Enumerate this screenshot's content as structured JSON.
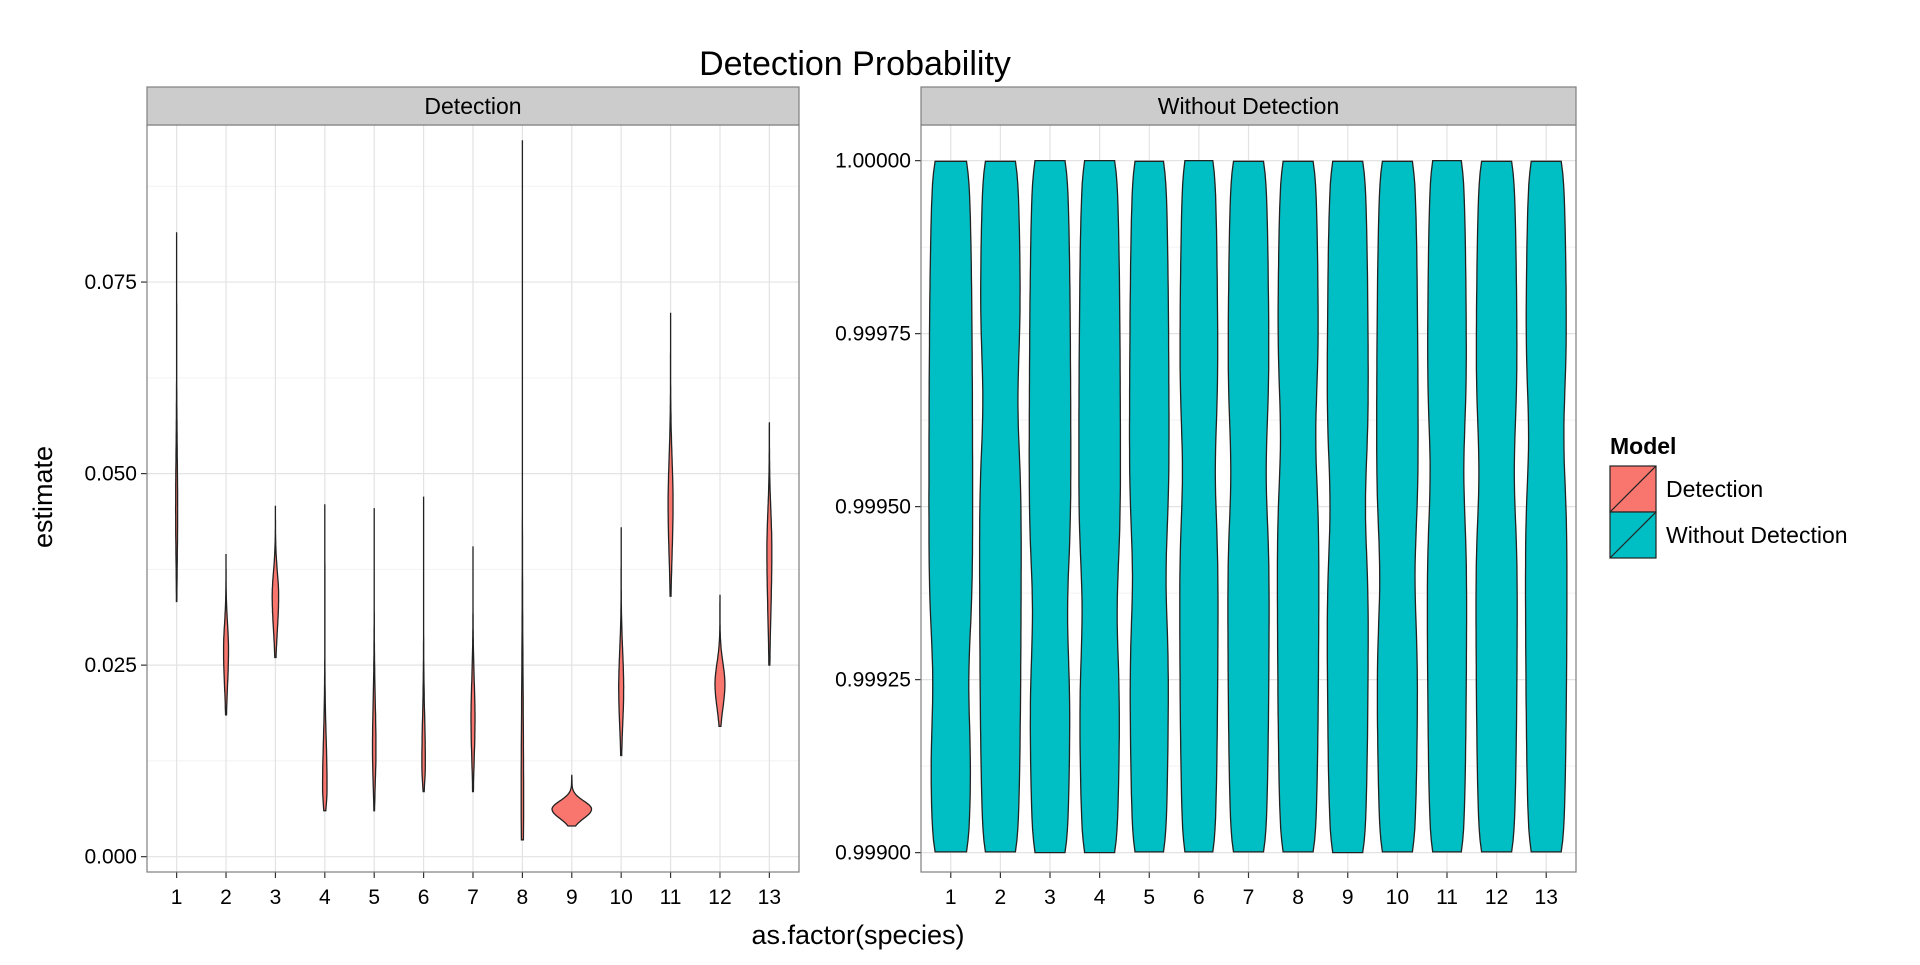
{
  "chart_data": {
    "type": "violin",
    "title": "Detection Probability",
    "xlabel": "as.factor(species)",
    "ylabel": "estimate",
    "categories": [
      "1",
      "2",
      "3",
      "4",
      "5",
      "6",
      "7",
      "8",
      "9",
      "10",
      "11",
      "12",
      "13"
    ],
    "grid": true,
    "legend": {
      "title": "Model",
      "placement": "right",
      "entries": [
        {
          "name": "Detection",
          "color": "#F8766D"
        },
        {
          "name": "Without Detection",
          "color": "#00BFC4"
        }
      ]
    },
    "panels": [
      {
        "strip": "Detection",
        "fill": "#F8766D",
        "ylim": [
          -0.002,
          0.0955
        ],
        "yticks": [
          0.0,
          0.025,
          0.05,
          0.075
        ],
        "ytick_labels": [
          "0.000",
          "0.025",
          "0.050",
          "0.075"
        ],
        "violins": [
          {
            "species": "1",
            "min": 0.0333,
            "max": 0.0815,
            "mode": 0.045,
            "maxWidth": 0.04
          },
          {
            "species": "2",
            "min": 0.0185,
            "max": 0.0395,
            "mode": 0.027,
            "maxWidth": 0.1
          },
          {
            "species": "3",
            "min": 0.026,
            "max": 0.0458,
            "mode": 0.034,
            "maxWidth": 0.13
          },
          {
            "species": "4",
            "min": 0.006,
            "max": 0.046,
            "mode": 0.009,
            "maxWidth": 0.09
          },
          {
            "species": "5",
            "min": 0.006,
            "max": 0.0455,
            "mode": 0.014,
            "maxWidth": 0.07
          },
          {
            "species": "6",
            "min": 0.0085,
            "max": 0.047,
            "mode": 0.012,
            "maxWidth": 0.07
          },
          {
            "species": "7",
            "min": 0.0085,
            "max": 0.0405,
            "mode": 0.018,
            "maxWidth": 0.08
          },
          {
            "species": "8",
            "min": 0.0022,
            "max": 0.0935,
            "mode": 0.006,
            "maxWidth": 0.05
          },
          {
            "species": "9",
            "min": 0.004,
            "max": 0.0107,
            "mode": 0.0062,
            "maxWidth": 0.8
          },
          {
            "species": "10",
            "min": 0.0132,
            "max": 0.043,
            "mode": 0.022,
            "maxWidth": 0.1
          },
          {
            "species": "11",
            "min": 0.034,
            "max": 0.071,
            "mode": 0.046,
            "maxWidth": 0.1
          },
          {
            "species": "12",
            "min": 0.017,
            "max": 0.0342,
            "mode": 0.0225,
            "maxWidth": 0.2
          },
          {
            "species": "13",
            "min": 0.025,
            "max": 0.0567,
            "mode": 0.04,
            "maxWidth": 0.1
          }
        ]
      },
      {
        "strip": "Without Detection",
        "fill": "#00BFC4",
        "ylim": [
          0.998972,
          1.0000515
        ],
        "yticks": [
          0.999,
          0.99925,
          0.9995,
          0.99975,
          1.0
        ],
        "ytick_labels": [
          "0.99900",
          "0.99925",
          "0.99950",
          "0.99975",
          "1.00000"
        ],
        "violins": [
          {
            "species": "1",
            "min": 0.999001,
            "max": 0.999999,
            "waist": 0.99925,
            "maxWidth": 0.88
          },
          {
            "species": "2",
            "min": 0.999001,
            "max": 0.999999,
            "waist": 0.99965,
            "maxWidth": 0.84
          },
          {
            "species": "3",
            "min": 0.999,
            "max": 1.0,
            "waist": 0.99935,
            "maxWidth": 0.84
          },
          {
            "species": "4",
            "min": 0.999,
            "max": 1.0,
            "waist": 0.99935,
            "maxWidth": 0.84
          },
          {
            "species": "5",
            "min": 0.999001,
            "max": 0.999999,
            "waist": 0.9994,
            "maxWidth": 0.8
          },
          {
            "species": "6",
            "min": 0.999001,
            "max": 1.0,
            "waist": 0.99955,
            "maxWidth": 0.78
          },
          {
            "species": "7",
            "min": 0.999001,
            "max": 0.999999,
            "waist": 0.99955,
            "maxWidth": 0.84
          },
          {
            "species": "8",
            "min": 0.999001,
            "max": 0.999999,
            "waist": 0.9996,
            "maxWidth": 0.84
          },
          {
            "species": "9",
            "min": 0.999,
            "max": 0.999999,
            "waist": 0.9995,
            "maxWidth": 0.84
          },
          {
            "species": "10",
            "min": 0.999001,
            "max": 0.999999,
            "waist": 0.9994,
            "maxWidth": 0.84
          },
          {
            "species": "11",
            "min": 0.999001,
            "max": 1.0,
            "waist": 0.99955,
            "maxWidth": 0.8
          },
          {
            "species": "12",
            "min": 0.999001,
            "max": 0.999999,
            "waist": 0.99955,
            "maxWidth": 0.84
          },
          {
            "species": "13",
            "min": 0.999001,
            "max": 0.999999,
            "waist": 0.9996,
            "maxWidth": 0.84
          }
        ]
      }
    ]
  }
}
